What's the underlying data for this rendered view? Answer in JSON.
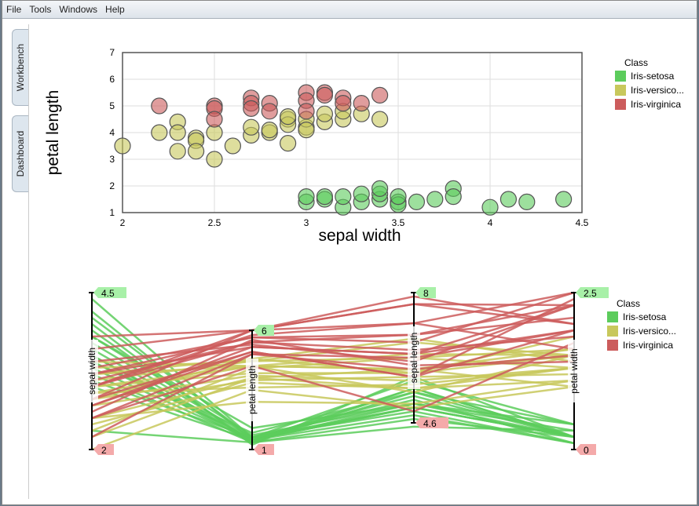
{
  "menu": [
    "File",
    "Tools",
    "Windows",
    "Help"
  ],
  "side_tabs": [
    "Workbench",
    "Dashboard"
  ],
  "colors": {
    "Iris-setosa": "#5ccc5c",
    "Iris-versicolor": "#c8c85c",
    "Iris-virginica": "#cc5c5c"
  },
  "chart_data": [
    {
      "type": "scatter",
      "xlabel": "sepal width",
      "ylabel": "petal length",
      "xlim": [
        2,
        4.5
      ],
      "ylim": [
        1,
        7
      ],
      "xticks": [
        "2",
        "2.5",
        "3",
        "3.5",
        "4",
        "4.5"
      ],
      "yticks": [
        "1",
        "2",
        "3",
        "4",
        "5",
        "6",
        "7"
      ],
      "legend": {
        "title": "Class",
        "placement": "top-right",
        "entries": [
          "Iris-setosa",
          "Iris-versico...",
          "Iris-virginica"
        ]
      },
      "series": [
        {
          "name": "Iris-versicolor",
          "points": [
            [
              2,
              3.5
            ],
            [
              2.2,
              4
            ],
            [
              2.3,
              4.4
            ],
            [
              2.3,
              4
            ],
            [
              2.3,
              3.3
            ],
            [
              2.4,
              3.8
            ],
            [
              2.4,
              3.7
            ],
            [
              2.4,
              3.3
            ],
            [
              2.5,
              4
            ],
            [
              2.5,
              3
            ],
            [
              2.6,
              3.5
            ],
            [
              2.7,
              3.9
            ],
            [
              2.7,
              4.2
            ],
            [
              2.8,
              4
            ],
            [
              2.8,
              4.1
            ],
            [
              2.9,
              4.5
            ],
            [
              2.9,
              4.3
            ],
            [
              2.9,
              3.6
            ],
            [
              2.9,
              4.6
            ],
            [
              3,
              4.2
            ],
            [
              3,
              4.5
            ],
            [
              3,
              4.1
            ],
            [
              3.1,
              4.4
            ],
            [
              3.1,
              4.7
            ],
            [
              3.2,
              4.5
            ],
            [
              3.2,
              4.8
            ],
            [
              3.3,
              4.7
            ],
            [
              3.4,
              4.5
            ]
          ]
        },
        {
          "name": "Iris-virginica",
          "points": [
            [
              2.2,
              5
            ],
            [
              2.5,
              5
            ],
            [
              2.5,
              4.9
            ],
            [
              2.5,
              4.5
            ],
            [
              2.7,
              5.3
            ],
            [
              2.7,
              5.1
            ],
            [
              2.7,
              4.9
            ],
            [
              2.8,
              5.1
            ],
            [
              2.8,
              4.8
            ],
            [
              3,
              5.5
            ],
            [
              3,
              5.2
            ],
            [
              3,
              4.8
            ],
            [
              3.1,
              5.5
            ],
            [
              3.1,
              5.4
            ],
            [
              3.2,
              5.3
            ],
            [
              3.2,
              5.1
            ],
            [
              3.3,
              5.1
            ],
            [
              3.4,
              5.4
            ]
          ]
        },
        {
          "name": "Iris-setosa",
          "points": [
            [
              3,
              1.4
            ],
            [
              3,
              1.6
            ],
            [
              3.1,
              1.5
            ],
            [
              3.1,
              1.6
            ],
            [
              3.2,
              1.2
            ],
            [
              3.2,
              1.6
            ],
            [
              3.3,
              1.4
            ],
            [
              3.3,
              1.7
            ],
            [
              3.4,
              1.5
            ],
            [
              3.4,
              1.7
            ],
            [
              3.4,
              1.9
            ],
            [
              3.5,
              1.4
            ],
            [
              3.5,
              1.3
            ],
            [
              3.5,
              1.6
            ],
            [
              3.6,
              1.4
            ],
            [
              3.7,
              1.5
            ],
            [
              3.8,
              1.9
            ],
            [
              3.8,
              1.6
            ],
            [
              4,
              1.2
            ],
            [
              4.1,
              1.5
            ],
            [
              4.2,
              1.4
            ],
            [
              4.4,
              1.5
            ]
          ]
        }
      ]
    },
    {
      "type": "parallel",
      "axes": [
        {
          "name": "sepal width",
          "min": 2,
          "max": 4.5
        },
        {
          "name": "petal length",
          "min": 1,
          "max": 6
        },
        {
          "name": "sepal length",
          "min": 4.6,
          "max": 8
        },
        {
          "name": "petal width",
          "min": 0,
          "max": 2.5
        }
      ],
      "legend": {
        "title": "Class",
        "placement": "right",
        "entries": [
          "Iris-setosa",
          "Iris-versico...",
          "Iris-virginica"
        ]
      },
      "series": [
        {
          "name": "Iris-setosa",
          "rows": [
            [
              4.4,
              1.5,
              5.7,
              0.4
            ],
            [
              4.2,
              1.4,
              5.5,
              0.2
            ],
            [
              4.1,
              1.5,
              5.2,
              0.1
            ],
            [
              4,
              1.2,
              5.8,
              0.2
            ],
            [
              3.9,
              1.3,
              5.4,
              0.4
            ],
            [
              3.8,
              1.9,
              5.1,
              0.4
            ],
            [
              3.8,
              1.6,
              5.1,
              0.2
            ],
            [
              3.7,
              1.5,
              5.3,
              0.2
            ],
            [
              3.6,
              1.4,
              5,
              0.2
            ],
            [
              3.5,
              1.3,
              5.5,
              0.2
            ],
            [
              3.5,
              1.4,
              5.1,
              0.3
            ],
            [
              3.4,
              1.5,
              5,
              0.2
            ],
            [
              3.4,
              1.7,
              5.4,
              0.2
            ],
            [
              3.3,
              1.4,
              5,
              0.2
            ],
            [
              3.2,
              1.3,
              4.7,
              0.2
            ],
            [
              3.1,
              1.5,
              4.9,
              0.1
            ],
            [
              3,
              1.4,
              4.8,
              0.1
            ],
            [
              2.3,
              1.3,
              4.5,
              0.3
            ]
          ]
        },
        {
          "name": "Iris-versicolor",
          "rows": [
            [
              2,
              3.5,
              5,
              1
            ],
            [
              2.2,
              4,
              6,
              1
            ],
            [
              2.3,
              4.4,
              6.3,
              1.3
            ],
            [
              2.4,
              3.8,
              5.5,
              1.1
            ],
            [
              2.5,
              4,
              5.5,
              1.3
            ],
            [
              2.5,
              3,
              5.1,
              1.1
            ],
            [
              2.7,
              3.9,
              5.8,
              1.2
            ],
            [
              2.8,
              4.1,
              5.7,
              1.3
            ],
            [
              2.9,
              4.5,
              6,
              1.5
            ],
            [
              2.9,
              3.6,
              5.6,
              1.3
            ],
            [
              3,
              4.2,
              5.9,
              1.5
            ],
            [
              3,
              4.5,
              5.4,
              1.5
            ],
            [
              3.1,
              4.7,
              6.7,
              1.5
            ],
            [
              3.2,
              4.8,
              5.9,
              1.8
            ],
            [
              3.2,
              4.5,
              6.4,
              1.5
            ],
            [
              3.3,
              4.7,
              6.3,
              1.6
            ],
            [
              3.4,
              4.5,
              6,
              1.6
            ],
            [
              2.8,
              4.8,
              6.8,
              1.4
            ]
          ]
        },
        {
          "name": "Iris-virginica",
          "rows": [
            [
              2.2,
              5,
              6,
              1.5
            ],
            [
              2.5,
              5,
              6.3,
              1.9
            ],
            [
              2.5,
              4.5,
              4.9,
              1.7
            ],
            [
              2.7,
              5.3,
              6.4,
              1.9
            ],
            [
              2.7,
              5.1,
              5.8,
              1.9
            ],
            [
              2.8,
              5.1,
              5.8,
              2.4
            ],
            [
              2.8,
              6,
              7.7,
              2
            ],
            [
              3,
              5.5,
              6.5,
              1.8
            ],
            [
              3,
              5.8,
              7.2,
              1.6
            ],
            [
              3,
              6,
              7.7,
              2.3
            ],
            [
              3.1,
              5.5,
              6.9,
              2.1
            ],
            [
              3.2,
              5.3,
              6.4,
              2.3
            ],
            [
              3.2,
              5.7,
              6.9,
              2.3
            ],
            [
              3.3,
              5.7,
              6.7,
              2.5
            ],
            [
              3.4,
              5.4,
              6.2,
              2.3
            ],
            [
              3.6,
              6,
              7.2,
              2.5
            ],
            [
              3.8,
              6,
              7.9,
              2
            ],
            [
              2.6,
              5.6,
              6.1,
              1.4
            ]
          ]
        }
      ]
    }
  ]
}
